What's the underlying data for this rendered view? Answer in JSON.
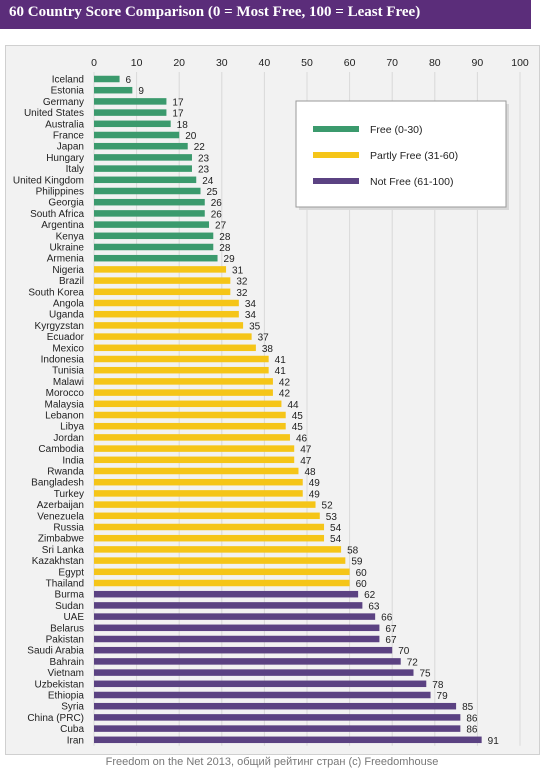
{
  "chart_data": {
    "type": "bar",
    "orientation": "horizontal",
    "title": "60 Country Score Comparison (0 = Most Free, 100 = Least Free)",
    "xlim": [
      0,
      100
    ],
    "x_ticks": [
      0,
      10,
      20,
      30,
      40,
      50,
      60,
      70,
      80,
      90,
      100
    ],
    "grid": true,
    "legend_position": "top-right",
    "legend": [
      {
        "label": "Free (0-30)",
        "color": "#3b9a6d"
      },
      {
        "label": "Partly Free (31-60)",
        "color": "#f5c518"
      },
      {
        "label": "Not Free (61-100)",
        "color": "#5b4282"
      }
    ],
    "categories": [
      "Iceland",
      "Estonia",
      "Germany",
      "United States",
      "Australia",
      "France",
      "Japan",
      "Hungary",
      "Italy",
      "United Kingdom",
      "Philippines",
      "Georgia",
      "South Africa",
      "Argentina",
      "Kenya",
      "Ukraine",
      "Armenia",
      "Nigeria",
      "Brazil",
      "South Korea",
      "Angola",
      "Uganda",
      "Kyrgyzstan",
      "Ecuador",
      "Mexico",
      "Indonesia",
      "Tunisia",
      "Malawi",
      "Morocco",
      "Malaysia",
      "Lebanon",
      "Libya",
      "Jordan",
      "Cambodia",
      "India",
      "Rwanda",
      "Bangladesh",
      "Turkey",
      "Azerbaijan",
      "Venezuela",
      "Russia",
      "Zimbabwe",
      "Sri Lanka",
      "Kazakhstan",
      "Egypt",
      "Thailand",
      "Burma",
      "Sudan",
      "UAE",
      "Belarus",
      "Pakistan",
      "Saudi Arabia",
      "Bahrain",
      "Vietnam",
      "Uzbekistan",
      "Ethiopia",
      "Syria",
      "China (PRC)",
      "Cuba",
      "Iran"
    ],
    "values": [
      6,
      9,
      17,
      17,
      18,
      20,
      22,
      23,
      23,
      24,
      25,
      26,
      26,
      27,
      28,
      28,
      29,
      31,
      32,
      32,
      34,
      34,
      35,
      37,
      38,
      41,
      41,
      42,
      42,
      44,
      45,
      45,
      46,
      47,
      47,
      48,
      49,
      49,
      52,
      53,
      54,
      54,
      58,
      59,
      60,
      60,
      62,
      63,
      66,
      67,
      67,
      70,
      72,
      75,
      78,
      79,
      85,
      86,
      86,
      91
    ]
  },
  "caption": "Freedom on the Net 2013, общий рейтинг стран (c) Freedomhouse"
}
